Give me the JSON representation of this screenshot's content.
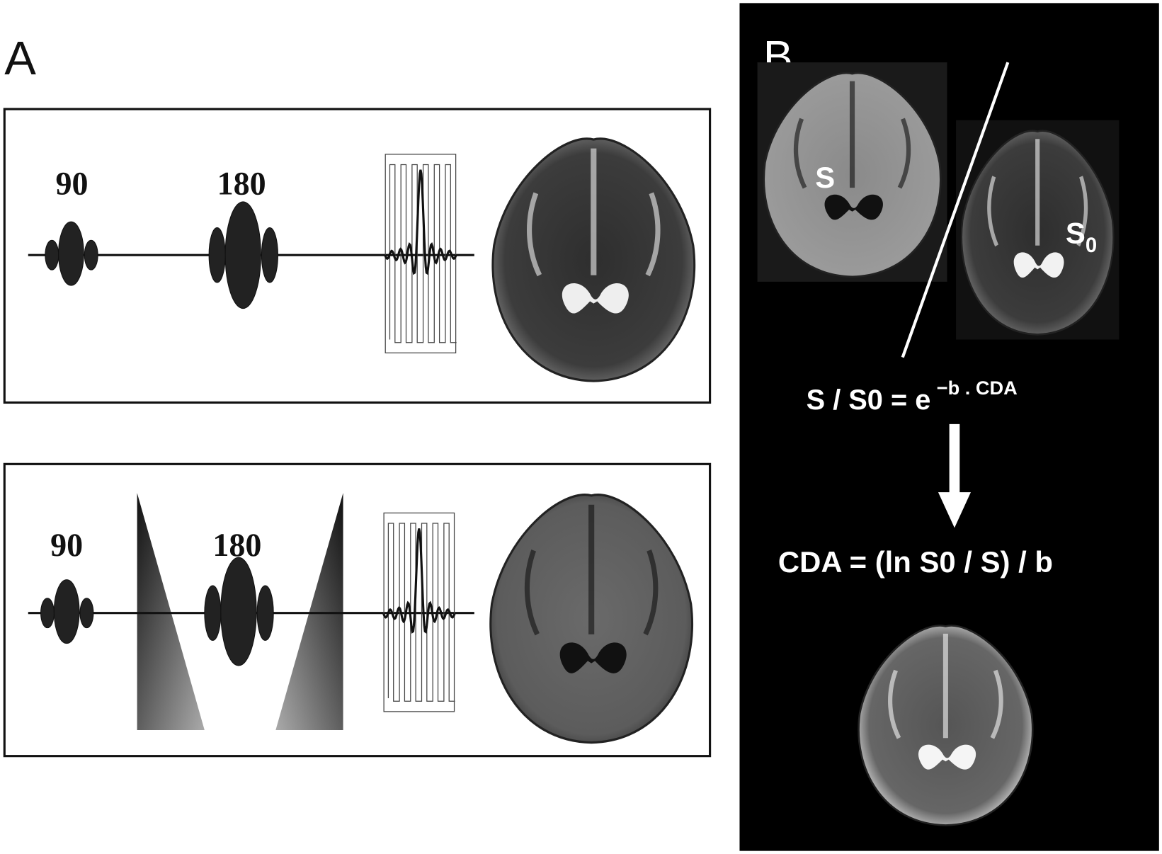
{
  "panel_a": {
    "label": "A",
    "sequence_1": {
      "pulse_labels": [
        "90",
        "180"
      ]
    },
    "sequence_2": {
      "pulse_labels": [
        "90",
        "180"
      ]
    }
  },
  "panel_b": {
    "label": "B",
    "image_labels": {
      "s": "S",
      "s0_base": "S",
      "s0_sub": "0"
    },
    "equation_1": {
      "base": "S / S0 = e",
      "exponent": "−b . CDA"
    },
    "equation_2": "CDA = (ln S0 / S) / b"
  }
}
